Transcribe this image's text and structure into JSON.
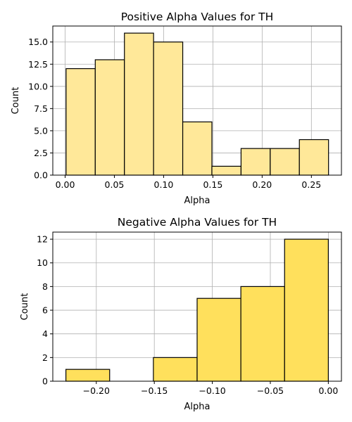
{
  "chart_data": [
    {
      "type": "bar",
      "title": "Positive Alpha Values for TH",
      "xlabel": "Alpha",
      "ylabel": "Count",
      "bin_edges": [
        0.001,
        0.0306,
        0.0602,
        0.0898,
        0.1194,
        0.149,
        0.1786,
        0.2082,
        0.2378,
        0.2674
      ],
      "values": [
        12,
        13,
        16,
        15,
        6,
        1,
        3,
        3,
        4
      ],
      "xlim": [
        -0.0125,
        0.2805
      ],
      "ylim": [
        0,
        16.8
      ],
      "xticks": [
        0.0,
        0.05,
        0.1,
        0.15,
        0.2,
        0.25
      ],
      "xtick_labels": [
        "0.00",
        "0.05",
        "0.10",
        "0.15",
        "0.20",
        "0.25"
      ],
      "yticks": [
        0.0,
        2.5,
        5.0,
        7.5,
        10.0,
        12.5,
        15.0
      ],
      "ytick_labels": [
        "0.0",
        "2.5",
        "5.0",
        "7.5",
        "10.0",
        "12.5",
        "15.0"
      ],
      "bar_color": "#FFE899",
      "edge_color": "#000000",
      "grid": true
    },
    {
      "type": "bar",
      "title": "Negative Alpha Values for TH",
      "xlabel": "Alpha",
      "ylabel": "Count",
      "bin_edges": [
        -0.2262,
        -0.1885,
        -0.1508,
        -0.1131,
        -0.0754,
        -0.0377,
        0.0
      ],
      "values": [
        1,
        0,
        2,
        7,
        8,
        12
      ],
      "xlim": [
        -0.2375,
        0.0113
      ],
      "ylim": [
        0,
        12.6
      ],
      "xticks": [
        -0.2,
        -0.15,
        -0.1,
        -0.05,
        0.0
      ],
      "xtick_labels": [
        "−0.20",
        "−0.15",
        "−0.10",
        "−0.05",
        "0.00"
      ],
      "yticks": [
        0,
        2,
        4,
        6,
        8,
        10,
        12
      ],
      "ytick_labels": [
        "0",
        "2",
        "4",
        "6",
        "8",
        "10",
        "12"
      ],
      "bar_color": "#FFE05C",
      "edge_color": "#000000",
      "grid": true
    }
  ]
}
